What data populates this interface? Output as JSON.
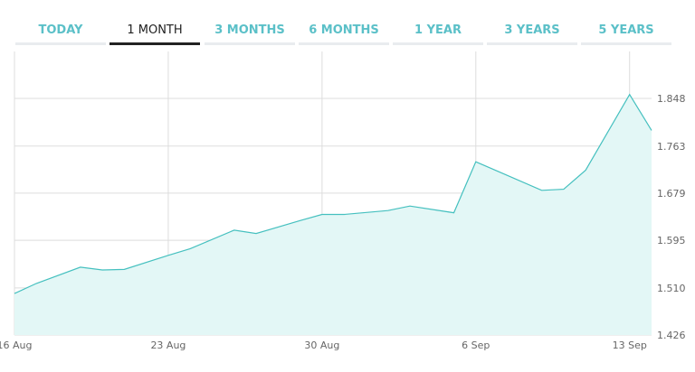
{
  "tabs": [
    {
      "label": "TODAY",
      "active": false
    },
    {
      "label": "1 MONTH",
      "active": true
    },
    {
      "label": "3 MONTHS",
      "active": false
    },
    {
      "label": "6 MONTHS",
      "active": false
    },
    {
      "label": "1 YEAR",
      "active": false
    },
    {
      "label": "3 YEARS",
      "active": false
    },
    {
      "label": "5 YEARS",
      "active": false
    }
  ],
  "colors": {
    "accent": "#5bc0c8",
    "line": "#45c0bf",
    "fill": "#e3f7f6",
    "active_tab": "#222222",
    "grid": "#dddddd"
  },
  "chart_data": {
    "type": "area",
    "title": "",
    "xlabel": "",
    "ylabel": "",
    "x_ticks": [
      "16 Aug",
      "23 Aug",
      "30 Aug",
      "6 Sep",
      "13 Sep"
    ],
    "x": [
      "16 Aug",
      "17 Aug",
      "19 Aug",
      "20 Aug",
      "21 Aug",
      "23 Aug",
      "24 Aug",
      "26 Aug",
      "27 Aug",
      "29 Aug",
      "30 Aug",
      "31 Aug",
      "2 Sep",
      "3 Sep",
      "5 Sep",
      "6 Sep",
      "7 Sep",
      "9 Sep",
      "10 Sep",
      "11 Sep",
      "13 Sep",
      "14 Sep"
    ],
    "series": [
      {
        "values": [
          1.5,
          1.518,
          1.547,
          1.542,
          1.543,
          1.568,
          1.58,
          1.613,
          1.607,
          1.63,
          1.641,
          1.641,
          1.648,
          1.656,
          1.644,
          1.735,
          1.718,
          1.684,
          1.686,
          1.72,
          1.855,
          1.791
        ]
      }
    ],
    "y_ticks": [
      "1.426",
      "1.510",
      "1.595",
      "1.679",
      "1.763",
      "1.848"
    ],
    "ylim": [
      1.426,
      1.848
    ],
    "grid": true,
    "legend": "none"
  }
}
